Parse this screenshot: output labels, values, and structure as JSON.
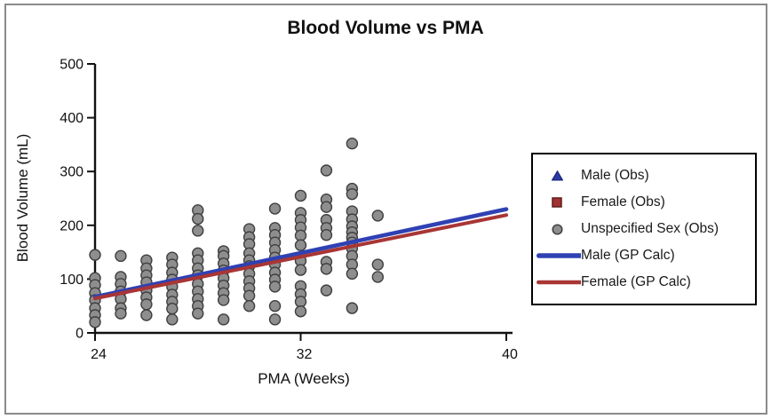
{
  "title": "Blood Volume vs PMA",
  "colors": {
    "male_blue": "#2c3aa6",
    "male_line_blue": "#2f41b3",
    "female_red": "#a03232",
    "female_line_red": "#a93535",
    "unspecified_gray": "#8e8e8e",
    "marker_outline": "#3f3f3f",
    "axis": "#111111",
    "frame_border": "#8a8a8a"
  },
  "legend": {
    "items": [
      {
        "label": "Male (Obs)",
        "marker": "triangle",
        "color": "#2c3aa6",
        "stroke": "#1b277c"
      },
      {
        "label": "Female (Obs)",
        "marker": "square",
        "color": "#a03232",
        "stroke": "#5f1c1c"
      },
      {
        "label": "Unspecified Sex (Obs)",
        "marker": "circle",
        "color": "#8e8e8e",
        "stroke": "#3f3f3f"
      },
      {
        "label": "Male (GP Calc)",
        "marker": "line",
        "color": "#2f41b3"
      },
      {
        "label": "Female (GP Calc)",
        "marker": "line",
        "color": "#a93535"
      }
    ]
  },
  "chart_data": {
    "type": "scatter",
    "title": "Blood Volume vs PMA",
    "xlabel": "PMA (Weeks)",
    "ylabel": "Blood Volume (mL)",
    "xlim": [
      24,
      40
    ],
    "ylim": [
      0,
      500
    ],
    "x_ticks": [
      24,
      32,
      40
    ],
    "y_ticks": [
      0,
      100,
      200,
      300,
      400,
      500
    ],
    "grid": false,
    "legend_position": "right",
    "series": [
      {
        "name": "Male (Obs)",
        "kind": "scatter",
        "marker": "triangle",
        "color": "#2c3aa6",
        "stroke": "#1b277c",
        "points": []
      },
      {
        "name": "Female (Obs)",
        "kind": "scatter",
        "marker": "square",
        "color": "#a03232",
        "stroke": "#5f1c1c",
        "points": []
      },
      {
        "name": "Unspecified Sex (Obs)",
        "kind": "scatter",
        "marker": "circle",
        "color": "#8e8e8e",
        "stroke": "#3f3f3f",
        "points": [
          [
            24,
            145
          ],
          [
            24,
            102
          ],
          [
            24,
            89
          ],
          [
            24,
            74
          ],
          [
            24,
            61
          ],
          [
            24,
            46
          ],
          [
            24,
            33
          ],
          [
            24,
            20
          ],
          [
            25,
            143
          ],
          [
            25,
            104
          ],
          [
            25,
            91
          ],
          [
            25,
            77
          ],
          [
            25,
            63
          ],
          [
            25,
            46
          ],
          [
            25,
            36
          ],
          [
            26,
            135
          ],
          [
            26,
            120
          ],
          [
            26,
            107
          ],
          [
            26,
            94
          ],
          [
            26,
            79
          ],
          [
            26,
            66
          ],
          [
            26,
            53
          ],
          [
            26,
            33
          ],
          [
            27,
            140
          ],
          [
            27,
            127
          ],
          [
            27,
            112
          ],
          [
            27,
            99
          ],
          [
            27,
            86
          ],
          [
            27,
            71
          ],
          [
            27,
            58
          ],
          [
            27,
            45
          ],
          [
            27,
            25
          ],
          [
            28,
            228
          ],
          [
            28,
            212
          ],
          [
            28,
            190
          ],
          [
            28,
            148
          ],
          [
            28,
            135
          ],
          [
            28,
            120
          ],
          [
            28,
            107
          ],
          [
            28,
            91
          ],
          [
            28,
            77
          ],
          [
            28,
            63
          ],
          [
            28,
            50
          ],
          [
            28,
            36
          ],
          [
            29,
            152
          ],
          [
            29,
            143
          ],
          [
            29,
            129
          ],
          [
            29,
            116
          ],
          [
            29,
            102
          ],
          [
            29,
            88
          ],
          [
            29,
            74
          ],
          [
            29,
            61
          ],
          [
            29,
            25
          ],
          [
            30,
            193
          ],
          [
            30,
            178
          ],
          [
            30,
            165
          ],
          [
            30,
            148
          ],
          [
            30,
            135
          ],
          [
            30,
            124
          ],
          [
            30,
            110
          ],
          [
            30,
            96
          ],
          [
            30,
            83
          ],
          [
            30,
            69
          ],
          [
            30,
            50
          ],
          [
            31,
            231
          ],
          [
            31,
            195
          ],
          [
            31,
            182
          ],
          [
            31,
            168
          ],
          [
            31,
            154
          ],
          [
            31,
            140
          ],
          [
            31,
            127
          ],
          [
            31,
            112
          ],
          [
            31,
            99
          ],
          [
            31,
            86
          ],
          [
            31,
            50
          ],
          [
            31,
            25
          ],
          [
            32,
            255
          ],
          [
            32,
            223
          ],
          [
            32,
            210
          ],
          [
            32,
            196
          ],
          [
            32,
            181
          ],
          [
            32,
            163
          ],
          [
            32,
            134
          ],
          [
            32,
            117
          ],
          [
            32,
            87
          ],
          [
            32,
            72
          ],
          [
            32,
            58
          ],
          [
            32,
            40
          ],
          [
            33,
            302
          ],
          [
            33,
            248
          ],
          [
            33,
            234
          ],
          [
            33,
            210
          ],
          [
            33,
            195
          ],
          [
            33,
            182
          ],
          [
            33,
            132
          ],
          [
            33,
            119
          ],
          [
            33,
            79
          ],
          [
            34,
            352
          ],
          [
            34,
            268
          ],
          [
            34,
            258
          ],
          [
            34,
            226
          ],
          [
            34,
            211
          ],
          [
            34,
            198
          ],
          [
            34,
            187
          ],
          [
            34,
            177
          ],
          [
            34,
            168
          ],
          [
            34,
            157
          ],
          [
            34,
            143
          ],
          [
            34,
            127
          ],
          [
            34,
            110
          ],
          [
            34,
            46
          ],
          [
            35,
            218
          ],
          [
            35,
            127
          ],
          [
            35,
            104
          ]
        ]
      },
      {
        "name": "Male (GP Calc)",
        "kind": "line",
        "color": "#2f41b3",
        "width": 4.6,
        "points": [
          [
            24,
            67
          ],
          [
            40,
            230
          ]
        ]
      },
      {
        "name": "Female (GP Calc)",
        "kind": "line",
        "color": "#a93535",
        "width": 4.0,
        "points": [
          [
            24,
            64
          ],
          [
            40,
            219
          ]
        ]
      }
    ]
  }
}
